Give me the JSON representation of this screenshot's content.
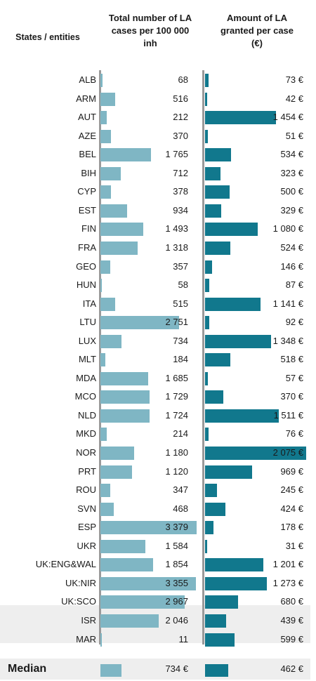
{
  "headers": {
    "states": "States / entities",
    "col1": [
      "Total number of LA",
      "cases per 100 000",
      "inh"
    ],
    "col2": [
      "Amount of LA",
      "granted per case",
      "(€)"
    ]
  },
  "chart_data": {
    "type": "bar",
    "categories": [
      "ALB",
      "ARM",
      "AUT",
      "AZE",
      "BEL",
      "BIH",
      "CYP",
      "EST",
      "FIN",
      "FRA",
      "GEO",
      "HUN",
      "ITA",
      "LTU",
      "LUX",
      "MLT",
      "MDA",
      "MCO",
      "NLD",
      "MKD",
      "NOR",
      "PRT",
      "ROU",
      "SVN",
      "ESP",
      "UKR",
      "UK:ENG&WAL",
      "UK:NIR",
      "UK:SCO",
      "ISR",
      "MAR"
    ],
    "series": [
      {
        "name": "Total number of LA cases per 100 000 inh",
        "values": [
          68,
          516,
          212,
          370,
          1765,
          712,
          378,
          934,
          1493,
          1318,
          357,
          58,
          515,
          2751,
          734,
          184,
          1685,
          1729,
          1724,
          214,
          1180,
          1120,
          347,
          468,
          3379,
          1584,
          1854,
          3355,
          2967,
          2046,
          11
        ],
        "labels": [
          "68",
          "516",
          "212",
          "370",
          "1 765",
          "712",
          "378",
          "934",
          "1 493",
          "1 318",
          "357",
          "58",
          "515",
          "2 751",
          "734",
          "184",
          "1 685",
          "1 729",
          "1 724",
          "214",
          "1 180",
          "1 120",
          "347",
          "468",
          "3 379",
          "1 584",
          "1 854",
          "3 355",
          "2 967",
          "2 046",
          "11"
        ],
        "color": "#7fb6c4",
        "xlim": [
          0,
          3550
        ]
      },
      {
        "name": "Amount of LA granted per case (€)",
        "values": [
          73,
          42,
          1454,
          51,
          534,
          323,
          500,
          329,
          1080,
          524,
          146,
          87,
          1141,
          92,
          1348,
          518,
          57,
          370,
          1511,
          76,
          2075,
          969,
          245,
          424,
          178,
          31,
          1201,
          1273,
          680,
          439,
          599
        ],
        "labels": [
          "73 €",
          "42 €",
          "1 454 €",
          "51 €",
          "534 €",
          "323 €",
          "500 €",
          "329 €",
          "1 080 €",
          "524 €",
          "146 €",
          "87 €",
          "1 141 €",
          "92 €",
          "1 348 €",
          "518 €",
          "57 €",
          "370 €",
          "1 511 €",
          "76 €",
          "2 075 €",
          "969 €",
          "245 €",
          "424 €",
          "178 €",
          "31 €",
          "1 201 €",
          "1 273 €",
          "680 €",
          "439 €",
          "599 €"
        ],
        "color": "#11788d",
        "xlim": [
          0,
          2075
        ]
      }
    ],
    "highlight_rows": [
      "ISR",
      "MAR"
    ],
    "median": {
      "label": "Median",
      "col1_value": 734,
      "col1_label": "734 €",
      "col2_value": 462,
      "col2_label": "462 €"
    }
  }
}
